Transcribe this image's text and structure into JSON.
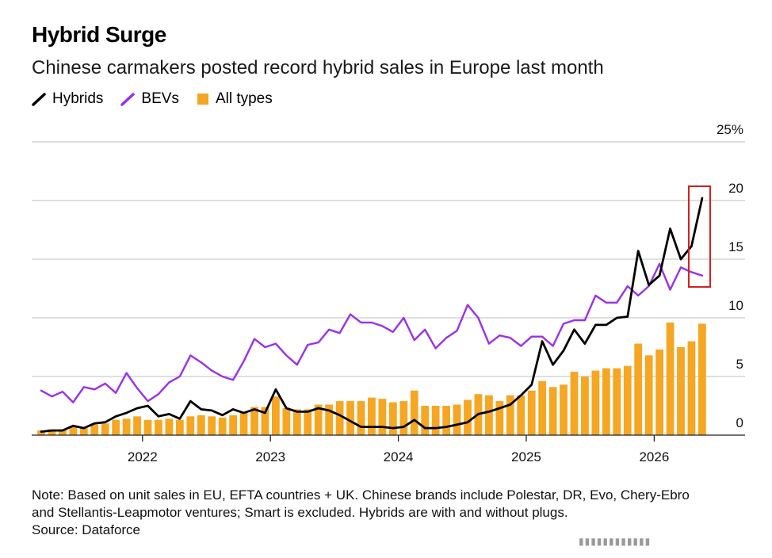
{
  "header": {
    "title": "Hybrid Surge",
    "subtitle": "Chinese carmakers posted record hybrid sales in Europe last month"
  },
  "legend": [
    {
      "label": "Hybrids",
      "icon": "line-swatch-icon",
      "color": "#000000"
    },
    {
      "label": "BEVs",
      "icon": "line-swatch-icon",
      "color": "#9b30e6"
    },
    {
      "label": "All types",
      "icon": "square-swatch-icon",
      "color": "#f5a623"
    }
  ],
  "footer": {
    "note_lines": [
      "Note: Based on unit sales in EU, EFTA countries + UK. Chinese brands include Polestar, DR, Evo, Chery-Ebro",
      "and Stellantis-Leapmotor ventures; Smart is excluded. Hybrids are with and without plugs."
    ],
    "source": "Source: Dataforce",
    "watermark": "▮▮▮▮▮▮▮▮▮▮▮▮"
  },
  "colors": {
    "hybrids": "#000000",
    "bevs": "#9b30e6",
    "all_types": "#f5a623",
    "highlight_box": "#d42020",
    "grid": "#cccccc"
  },
  "chart_data": {
    "type": "line+bar",
    "title": "Hybrid Surge",
    "subtitle": "Chinese carmakers posted record hybrid sales in Europe last month",
    "x_unit": "month",
    "x_start": "2021-03",
    "x_end": "2026-03",
    "x_tick_labels": [
      "2022",
      "2023",
      "2024",
      "2025",
      "2026"
    ],
    "y_tick_labels": [
      "0",
      "5",
      "10",
      "15",
      "20",
      "25%"
    ],
    "ylim": [
      0,
      25
    ],
    "y_unit": "%",
    "grid": true,
    "legend_position": "top-left",
    "highlight": {
      "from": "2026-01",
      "to": "2026-03",
      "note": "red box around latest values"
    },
    "series": [
      {
        "name": "Hybrids",
        "type": "line",
        "values": [
          0.3,
          0.4,
          0.4,
          0.8,
          0.6,
          1.0,
          1.1,
          1.6,
          1.9,
          2.3,
          2.5,
          1.6,
          1.8,
          1.4,
          2.9,
          2.2,
          2.1,
          1.7,
          2.2,
          1.9,
          2.2,
          1.9,
          3.9,
          2.3,
          2.0,
          2.0,
          2.3,
          2.1,
          1.7,
          1.2,
          0.7,
          0.7,
          0.7,
          0.6,
          0.7,
          1.3,
          0.6,
          0.6,
          0.7,
          0.9,
          1.1,
          1.8,
          2.0,
          2.3,
          2.6,
          3.4,
          4.3,
          8.0,
          6.0,
          7.2,
          9.0,
          7.8,
          9.4,
          9.4,
          10.0,
          10.1,
          15.7,
          12.8,
          13.6,
          17.6,
          15.0,
          16.1,
          20.2
        ]
      },
      {
        "name": "BEVs",
        "type": "line",
        "values": [
          3.8,
          3.3,
          3.7,
          2.8,
          4.1,
          3.9,
          4.4,
          3.6,
          5.3,
          4.0,
          2.9,
          3.5,
          4.5,
          5.0,
          6.8,
          6.2,
          5.5,
          5.0,
          4.7,
          6.3,
          8.2,
          7.5,
          7.8,
          6.8,
          6.0,
          7.7,
          7.9,
          9.0,
          8.7,
          10.3,
          9.6,
          9.6,
          9.3,
          8.8,
          10.0,
          8.1,
          9.0,
          7.4,
          8.3,
          8.9,
          11.1,
          10.0,
          7.8,
          8.5,
          8.3,
          7.6,
          8.4,
          8.4,
          7.6,
          9.5,
          9.8,
          9.8,
          11.9,
          11.3,
          11.3,
          12.7,
          11.9,
          12.7,
          14.6,
          12.4,
          14.3,
          13.9,
          13.6
        ]
      },
      {
        "name": "All types",
        "type": "bar",
        "values": [
          0.4,
          0.5,
          0.5,
          0.7,
          0.6,
          0.9,
          1.0,
          1.3,
          1.4,
          1.6,
          1.3,
          1.3,
          1.4,
          1.3,
          1.6,
          1.7,
          1.6,
          1.5,
          1.7,
          1.9,
          2.4,
          2.4,
          3.3,
          2.3,
          2.2,
          2.2,
          2.6,
          2.6,
          2.9,
          2.9,
          2.9,
          3.2,
          3.1,
          2.8,
          2.9,
          3.8,
          2.5,
          2.5,
          2.5,
          2.6,
          3.0,
          3.5,
          3.4,
          2.9,
          3.4,
          3.4,
          3.8,
          4.6,
          4.1,
          4.3,
          5.4,
          5.0,
          5.5,
          5.7,
          5.7,
          5.9,
          7.8,
          6.8,
          7.3,
          9.6,
          7.5,
          8.0,
          9.5
        ]
      }
    ]
  }
}
